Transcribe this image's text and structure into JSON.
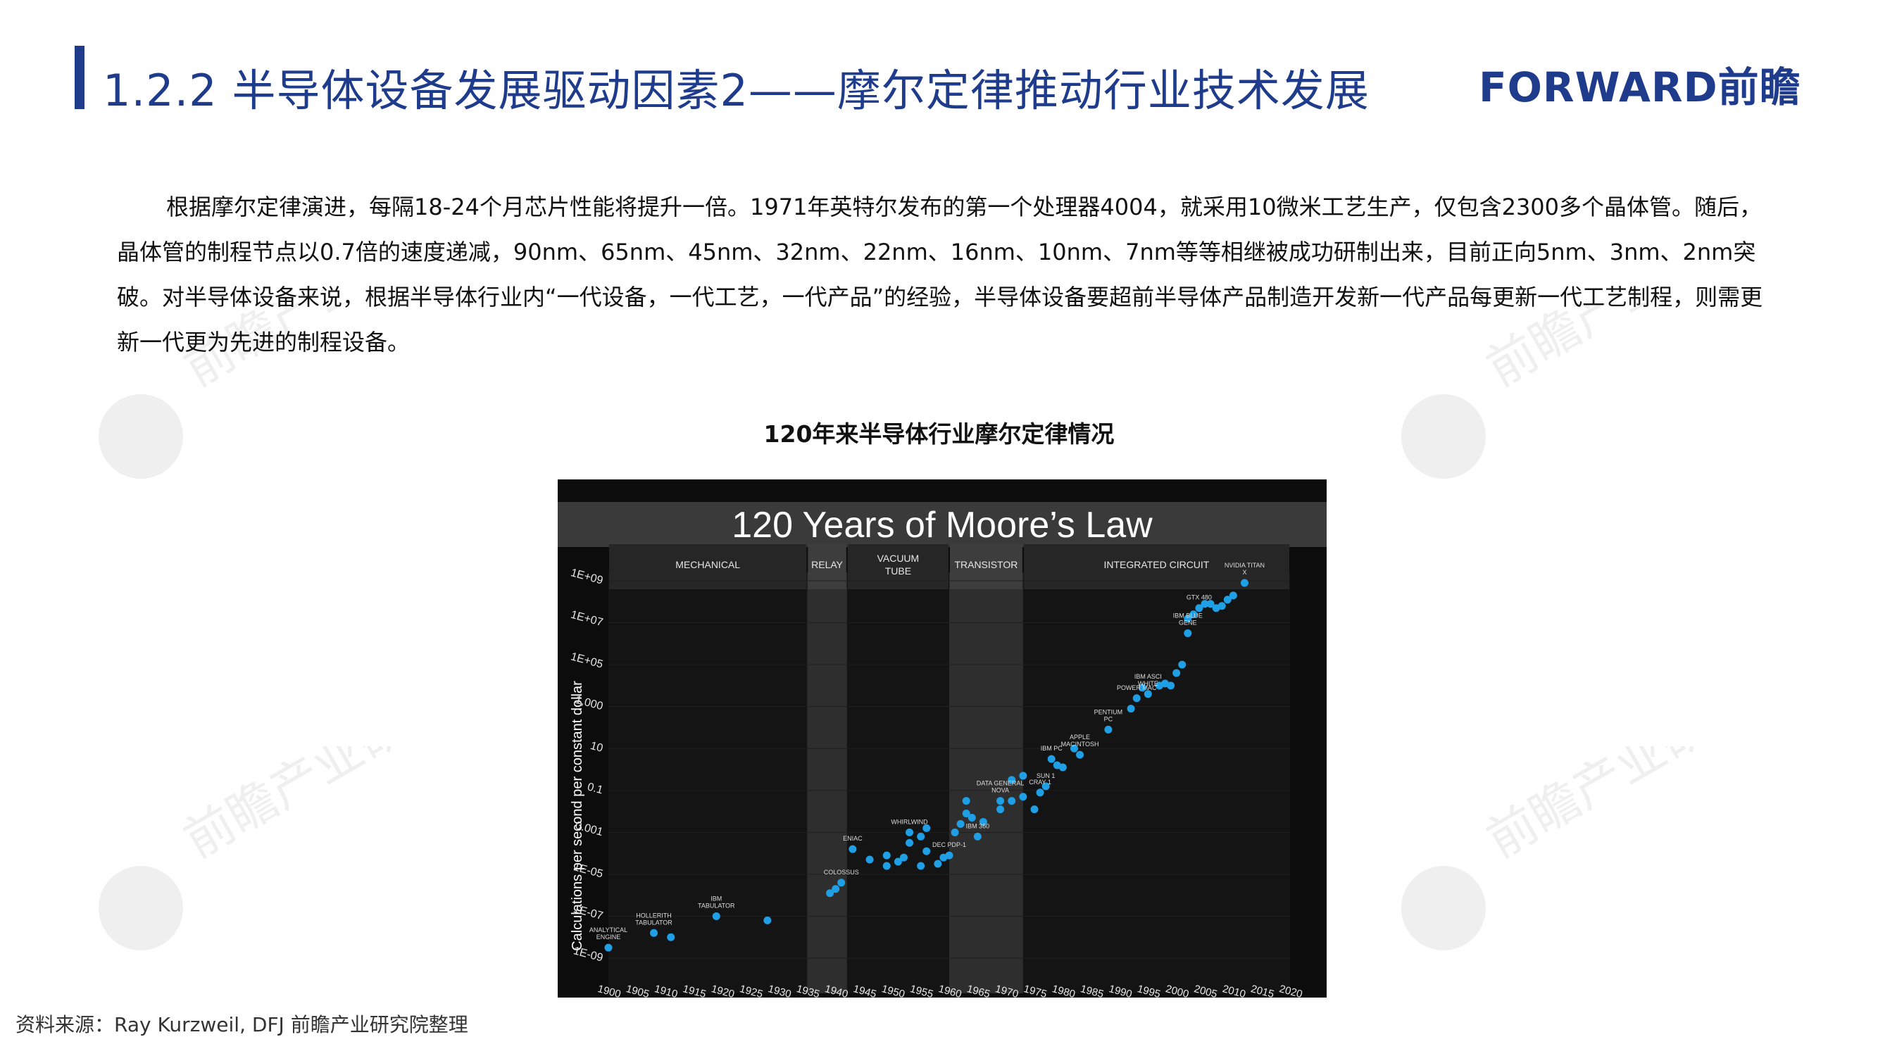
{
  "header": {
    "title": "1.2.2 半导体设备发展驱动因素2——摩尔定律推动行业技术发展",
    "logo_text": "FORWARD前瞻",
    "accent_color": "#1f3c8c"
  },
  "body": {
    "paragraph": "根据摩尔定律演进，每隔18-24个月芯片性能将提升一倍。1971年英特尔发布的第一个处理器4004，就采用10微米工艺生产，仅包含2300多个晶体管。随后，晶体管的制程节点以0.7倍的速度递减，90nm、65nm、45nm、32nm、22nm、16nm、10nm、7nm等等相继被成功研制出来，目前正向5nm、3nm、2nm突破。对半导体设备来说，根据半导体行业内“一代设备，一代工艺，一代产品”的经验，半导体设备要超前半导体产品制造开发新一代产品每更新一代工艺制程，则需更新一代更为先进的制程设备。"
  },
  "figure": {
    "caption": "120年来半导体行业摩尔定律情况"
  },
  "chart_data": {
    "type": "scatter",
    "title": "120 Years of Moore’s Law",
    "ylabel": "Calculations per second per constant dollar",
    "xlabel": "",
    "y_scale": "log",
    "xlim": [
      1900,
      2020
    ],
    "ylim_log10": [
      -9,
      9
    ],
    "x_ticks": [
      "1900",
      "1905",
      "1910",
      "1915",
      "1920",
      "1925",
      "1930",
      "1935",
      "1940",
      "1945",
      "1950",
      "1955",
      "1960",
      "1965",
      "1970",
      "1975",
      "1980",
      "1985",
      "1990",
      "1995",
      "2000",
      "2005",
      "2010",
      "2015",
      "2020"
    ],
    "y_ticks": [
      "1E-09",
      "1E-07",
      "1E-05",
      "0.001",
      "0.1",
      "10",
      "1,000",
      "1E+05",
      "1E+07",
      "1E+09"
    ],
    "eras": [
      {
        "label": "MECHANICAL",
        "start": 1900,
        "end": 1935,
        "highlight": false
      },
      {
        "label": "RELAY",
        "start": 1935,
        "end": 1942,
        "highlight": true
      },
      {
        "label": "VACUUM TUBE",
        "start": 1942,
        "end": 1960,
        "highlight": false
      },
      {
        "label": "TRANSISTOR",
        "start": 1960,
        "end": 1973,
        "highlight": true
      },
      {
        "label": "INTEGRATED CIRCUIT",
        "start": 1973,
        "end": 2020,
        "highlight": false
      }
    ],
    "point_color": "#1fa0e6",
    "points": [
      {
        "x": 1900,
        "y": -8.5
      },
      {
        "x": 1908,
        "y": -7.8
      },
      {
        "x": 1911,
        "y": -8.0
      },
      {
        "x": 1919,
        "y": -7.0
      },
      {
        "x": 1928,
        "y": -7.2
      },
      {
        "x": 1939,
        "y": -5.9
      },
      {
        "x": 1940,
        "y": -5.7
      },
      {
        "x": 1941,
        "y": -5.4
      },
      {
        "x": 1943,
        "y": -3.8
      },
      {
        "x": 1946,
        "y": -4.3
      },
      {
        "x": 1949,
        "y": -4.1
      },
      {
        "x": 1949,
        "y": -4.6
      },
      {
        "x": 1951,
        "y": -4.4
      },
      {
        "x": 1952,
        "y": -4.2
      },
      {
        "x": 1953,
        "y": -3.5
      },
      {
        "x": 1953,
        "y": -3.0
      },
      {
        "x": 1955,
        "y": -4.6
      },
      {
        "x": 1955,
        "y": -3.2
      },
      {
        "x": 1956,
        "y": -2.8
      },
      {
        "x": 1956,
        "y": -3.9
      },
      {
        "x": 1958,
        "y": -4.5
      },
      {
        "x": 1959,
        "y": -4.2
      },
      {
        "x": 1960,
        "y": -4.1
      },
      {
        "x": 1961,
        "y": -3.0
      },
      {
        "x": 1962,
        "y": -2.6
      },
      {
        "x": 1963,
        "y": -2.1
      },
      {
        "x": 1963,
        "y": -1.5
      },
      {
        "x": 1964,
        "y": -2.3
      },
      {
        "x": 1965,
        "y": -3.2
      },
      {
        "x": 1966,
        "y": -2.5
      },
      {
        "x": 1969,
        "y": -1.5
      },
      {
        "x": 1969,
        "y": -1.9
      },
      {
        "x": 1971,
        "y": -0.5
      },
      {
        "x": 1971,
        "y": -1.5
      },
      {
        "x": 1973,
        "y": -1.3
      },
      {
        "x": 1973,
        "y": -0.3
      },
      {
        "x": 1975,
        "y": -1.9
      },
      {
        "x": 1976,
        "y": -1.1
      },
      {
        "x": 1977,
        "y": -0.8
      },
      {
        "x": 1978,
        "y": 0.5
      },
      {
        "x": 1979,
        "y": 0.2
      },
      {
        "x": 1980,
        "y": 0.1
      },
      {
        "x": 1982,
        "y": 1.0
      },
      {
        "x": 1983,
        "y": 0.7
      },
      {
        "x": 1988,
        "y": 1.9
      },
      {
        "x": 1992,
        "y": 2.9
      },
      {
        "x": 1993,
        "y": 3.4
      },
      {
        "x": 1994,
        "y": 3.9
      },
      {
        "x": 1995,
        "y": 3.6
      },
      {
        "x": 1997,
        "y": 4.0
      },
      {
        "x": 1998,
        "y": 4.1
      },
      {
        "x": 1999,
        "y": 4.0
      },
      {
        "x": 2000,
        "y": 4.6
      },
      {
        "x": 2001,
        "y": 5.0
      },
      {
        "x": 2002,
        "y": 6.5
      },
      {
        "x": 2002,
        "y": 7.2
      },
      {
        "x": 2003,
        "y": 7.4
      },
      {
        "x": 2004,
        "y": 7.7
      },
      {
        "x": 2005,
        "y": 7.9
      },
      {
        "x": 2006,
        "y": 7.9
      },
      {
        "x": 2007,
        "y": 7.7
      },
      {
        "x": 2008,
        "y": 7.8
      },
      {
        "x": 2009,
        "y": 8.1
      },
      {
        "x": 2010,
        "y": 8.3
      },
      {
        "x": 2012,
        "y": 8.9
      }
    ],
    "annotations": [
      {
        "text": "ANALYTICAL ENGINE",
        "x": 1900,
        "y": -8.5
      },
      {
        "text": "HOLLERITH TABULATOR",
        "x": 1908,
        "y": -7.8
      },
      {
        "text": "IBM TABULATOR",
        "x": 1919,
        "y": -7.0
      },
      {
        "text": "COLOSSUS",
        "x": 1941,
        "y": -5.4
      },
      {
        "text": "ENIAC",
        "x": 1943,
        "y": -3.8
      },
      {
        "text": "WHIRLWIND",
        "x": 1953,
        "y": -3.0
      },
      {
        "text": "DEC PDP-1",
        "x": 1960,
        "y": -4.1
      },
      {
        "text": "IBM 360",
        "x": 1965,
        "y": -3.2
      },
      {
        "text": "DATA GENERAL NOVA",
        "x": 1969,
        "y": -1.5
      },
      {
        "text": "CRAY 1",
        "x": 1976,
        "y": -1.1
      },
      {
        "text": "SUN 1",
        "x": 1977,
        "y": -0.8
      },
      {
        "text": "IBM PC",
        "x": 1978,
        "y": 0.5
      },
      {
        "text": "APPLE MACINTOSH",
        "x": 1983,
        "y": 0.7
      },
      {
        "text": "PENTIUM PC",
        "x": 1988,
        "y": 1.9
      },
      {
        "text": "POWER MAC",
        "x": 1993,
        "y": 3.4
      },
      {
        "text": "IBM ASCI WHITE",
        "x": 1995,
        "y": 3.6
      },
      {
        "text": "IBM BLUE GENE",
        "x": 2002,
        "y": 6.5
      },
      {
        "text": "GTX 480",
        "x": 2004,
        "y": 7.7
      },
      {
        "text": "NVIDIA TITAN X",
        "x": 2012,
        "y": 8.9
      }
    ]
  },
  "source": {
    "text": "资料来源：Ray Kurzweil, DFJ 前瞻产业研究院整理"
  },
  "watermark": {
    "text": "前瞻产业研究院"
  }
}
